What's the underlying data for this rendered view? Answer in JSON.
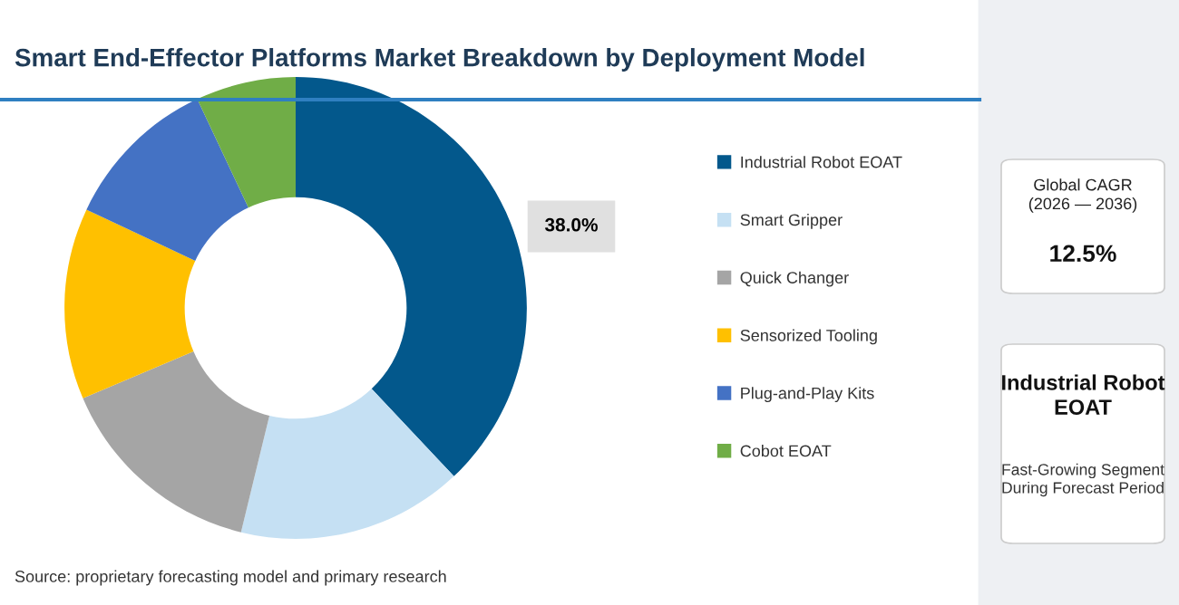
{
  "chart_data": {
    "type": "donut",
    "title": "Smart End-Effector Platforms Market Breakdown by Deployment Model",
    "categories": [
      "Industrial Robot EOAT",
      "Smart Gripper",
      "Quick Changer",
      "Sensorized Tooling",
      "Plug-and-Play Kits",
      "Cobot EOAT"
    ],
    "values": [
      38.0,
      15.8,
      14.8,
      13.4,
      11.0,
      7.0
    ],
    "colors": [
      "#03588c",
      "#c5e0f3",
      "#a5a5a5",
      "#ffc000",
      "#4472c4",
      "#70ad47"
    ],
    "value_labels": [
      "38.0%",
      null,
      null,
      null,
      null,
      null
    ],
    "legend": "right",
    "annotations": [
      "Global CAGR\n(2026 — 2036)",
      "12.5%",
      "Industrial Robot\nEOAT",
      "Fast-Growing Segment\nDuring Forecast Period",
      "Source: proprietary forecasting model and primary research"
    ]
  }
}
